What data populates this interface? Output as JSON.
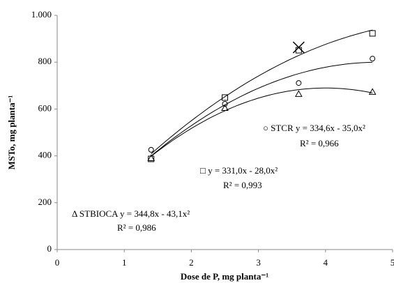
{
  "chart_data": {
    "type": "scatter",
    "xlabel": "Dose de P, mg planta⁻¹",
    "ylabel": "MSTo, mg planta⁻¹",
    "x": [
      1.4,
      2.5,
      3.6,
      4.7
    ],
    "xlim": [
      0,
      5
    ],
    "xticks": [
      0,
      1,
      2,
      3,
      4,
      5
    ],
    "ylim": [
      0,
      1000
    ],
    "yticks": [
      0,
      200,
      400,
      600,
      800,
      {
        "value": 1000,
        "label": "1.000"
      }
    ],
    "grid": false,
    "series": [
      {
        "marker": "circle",
        "color": "#000000",
        "values": [
          426,
          622,
          711,
          815
        ],
        "fit": [
          334.6,
          -35.0
        ],
        "fit_range": [
          1.4,
          4.7
        ],
        "equation": "○ STCR y = 334,6x - 35,0x²",
        "r2": "R² = 0,966"
      },
      {
        "marker": "square",
        "color": "#000000",
        "values": [
          387,
          649,
          851,
          923
        ],
        "fit": [
          331.0,
          -28.0
        ],
        "fit_range": [
          1.4,
          4.7
        ],
        "equation": "□ y = 331,0x - 28,0x²",
        "r2": "R² = 0,993"
      },
      {
        "marker": "triangle",
        "color": "#000000",
        "values": [
          390,
          604,
          664,
          673
        ],
        "fit": [
          344.8,
          -43.1
        ],
        "fit_range": [
          1.4,
          4.7
        ],
        "equation": "Δ STBIOCA y = 344,8x - 43,1x²",
        "r2": "R² = 0,986"
      },
      {
        "marker": "cross",
        "color": "#000000",
        "values": [
          null,
          null,
          863,
          null
        ]
      }
    ]
  }
}
